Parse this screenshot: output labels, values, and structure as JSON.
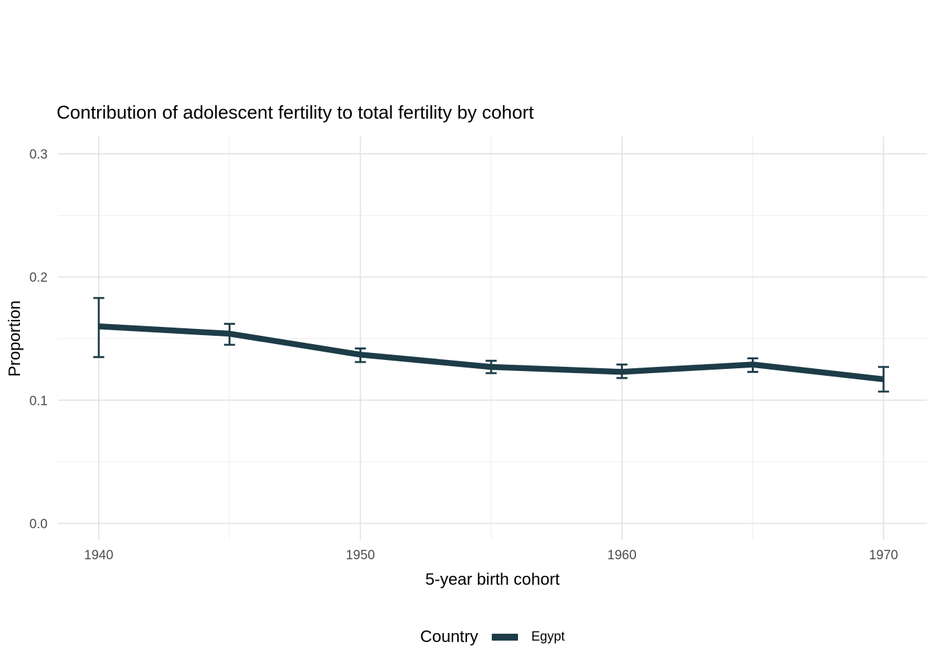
{
  "title": "Contribution of adolescent fertility to total fertility by cohort",
  "axes": {
    "x": {
      "label": "5-year birth cohort",
      "tick_values": [
        1940,
        1950,
        1960,
        1970
      ],
      "tick_labels": [
        "1940",
        "1950",
        "1960",
        "1970"
      ],
      "minor_ticks": [
        1945,
        1955,
        1965
      ]
    },
    "y": {
      "label": "Proportion",
      "tick_values": [
        0.0,
        0.1,
        0.2,
        0.3
      ],
      "tick_labels": [
        "0.0",
        "0.1",
        "0.2",
        "0.3"
      ],
      "minor_ticks": [
        0.05,
        0.15,
        0.25
      ]
    }
  },
  "legend": {
    "title": "Country",
    "entries": [
      {
        "label": "Egypt",
        "color": "#1d3c48"
      }
    ]
  },
  "colors": {
    "line": "#1d3c48",
    "grid_major": "#e3e3e3",
    "grid_minor": "#eeeeee",
    "tick_text": "#4d4d4d",
    "background": "#ffffff"
  },
  "chart_data": {
    "type": "line",
    "title": "Contribution of adolescent fertility to total fertility by cohort",
    "xlabel": "5-year birth cohort",
    "ylabel": "Proportion",
    "legend_position": "bottom",
    "grid": true,
    "error_bars": true,
    "categories": [
      1940,
      1945,
      1950,
      1955,
      1960,
      1965,
      1970
    ],
    "series": [
      {
        "name": "Egypt",
        "x": [
          1940,
          1945,
          1950,
          1955,
          1960,
          1965,
          1970
        ],
        "y": [
          0.16,
          0.154,
          0.137,
          0.127,
          0.123,
          0.129,
          0.117
        ],
        "ci_low": [
          0.135,
          0.145,
          0.131,
          0.122,
          0.118,
          0.123,
          0.107
        ],
        "ci_high": [
          0.183,
          0.162,
          0.142,
          0.132,
          0.129,
          0.134,
          0.127
        ]
      }
    ],
    "xlim": [
      1938.44,
      1971.66
    ],
    "ylim": [
      -0.0134,
      0.314
    ]
  }
}
